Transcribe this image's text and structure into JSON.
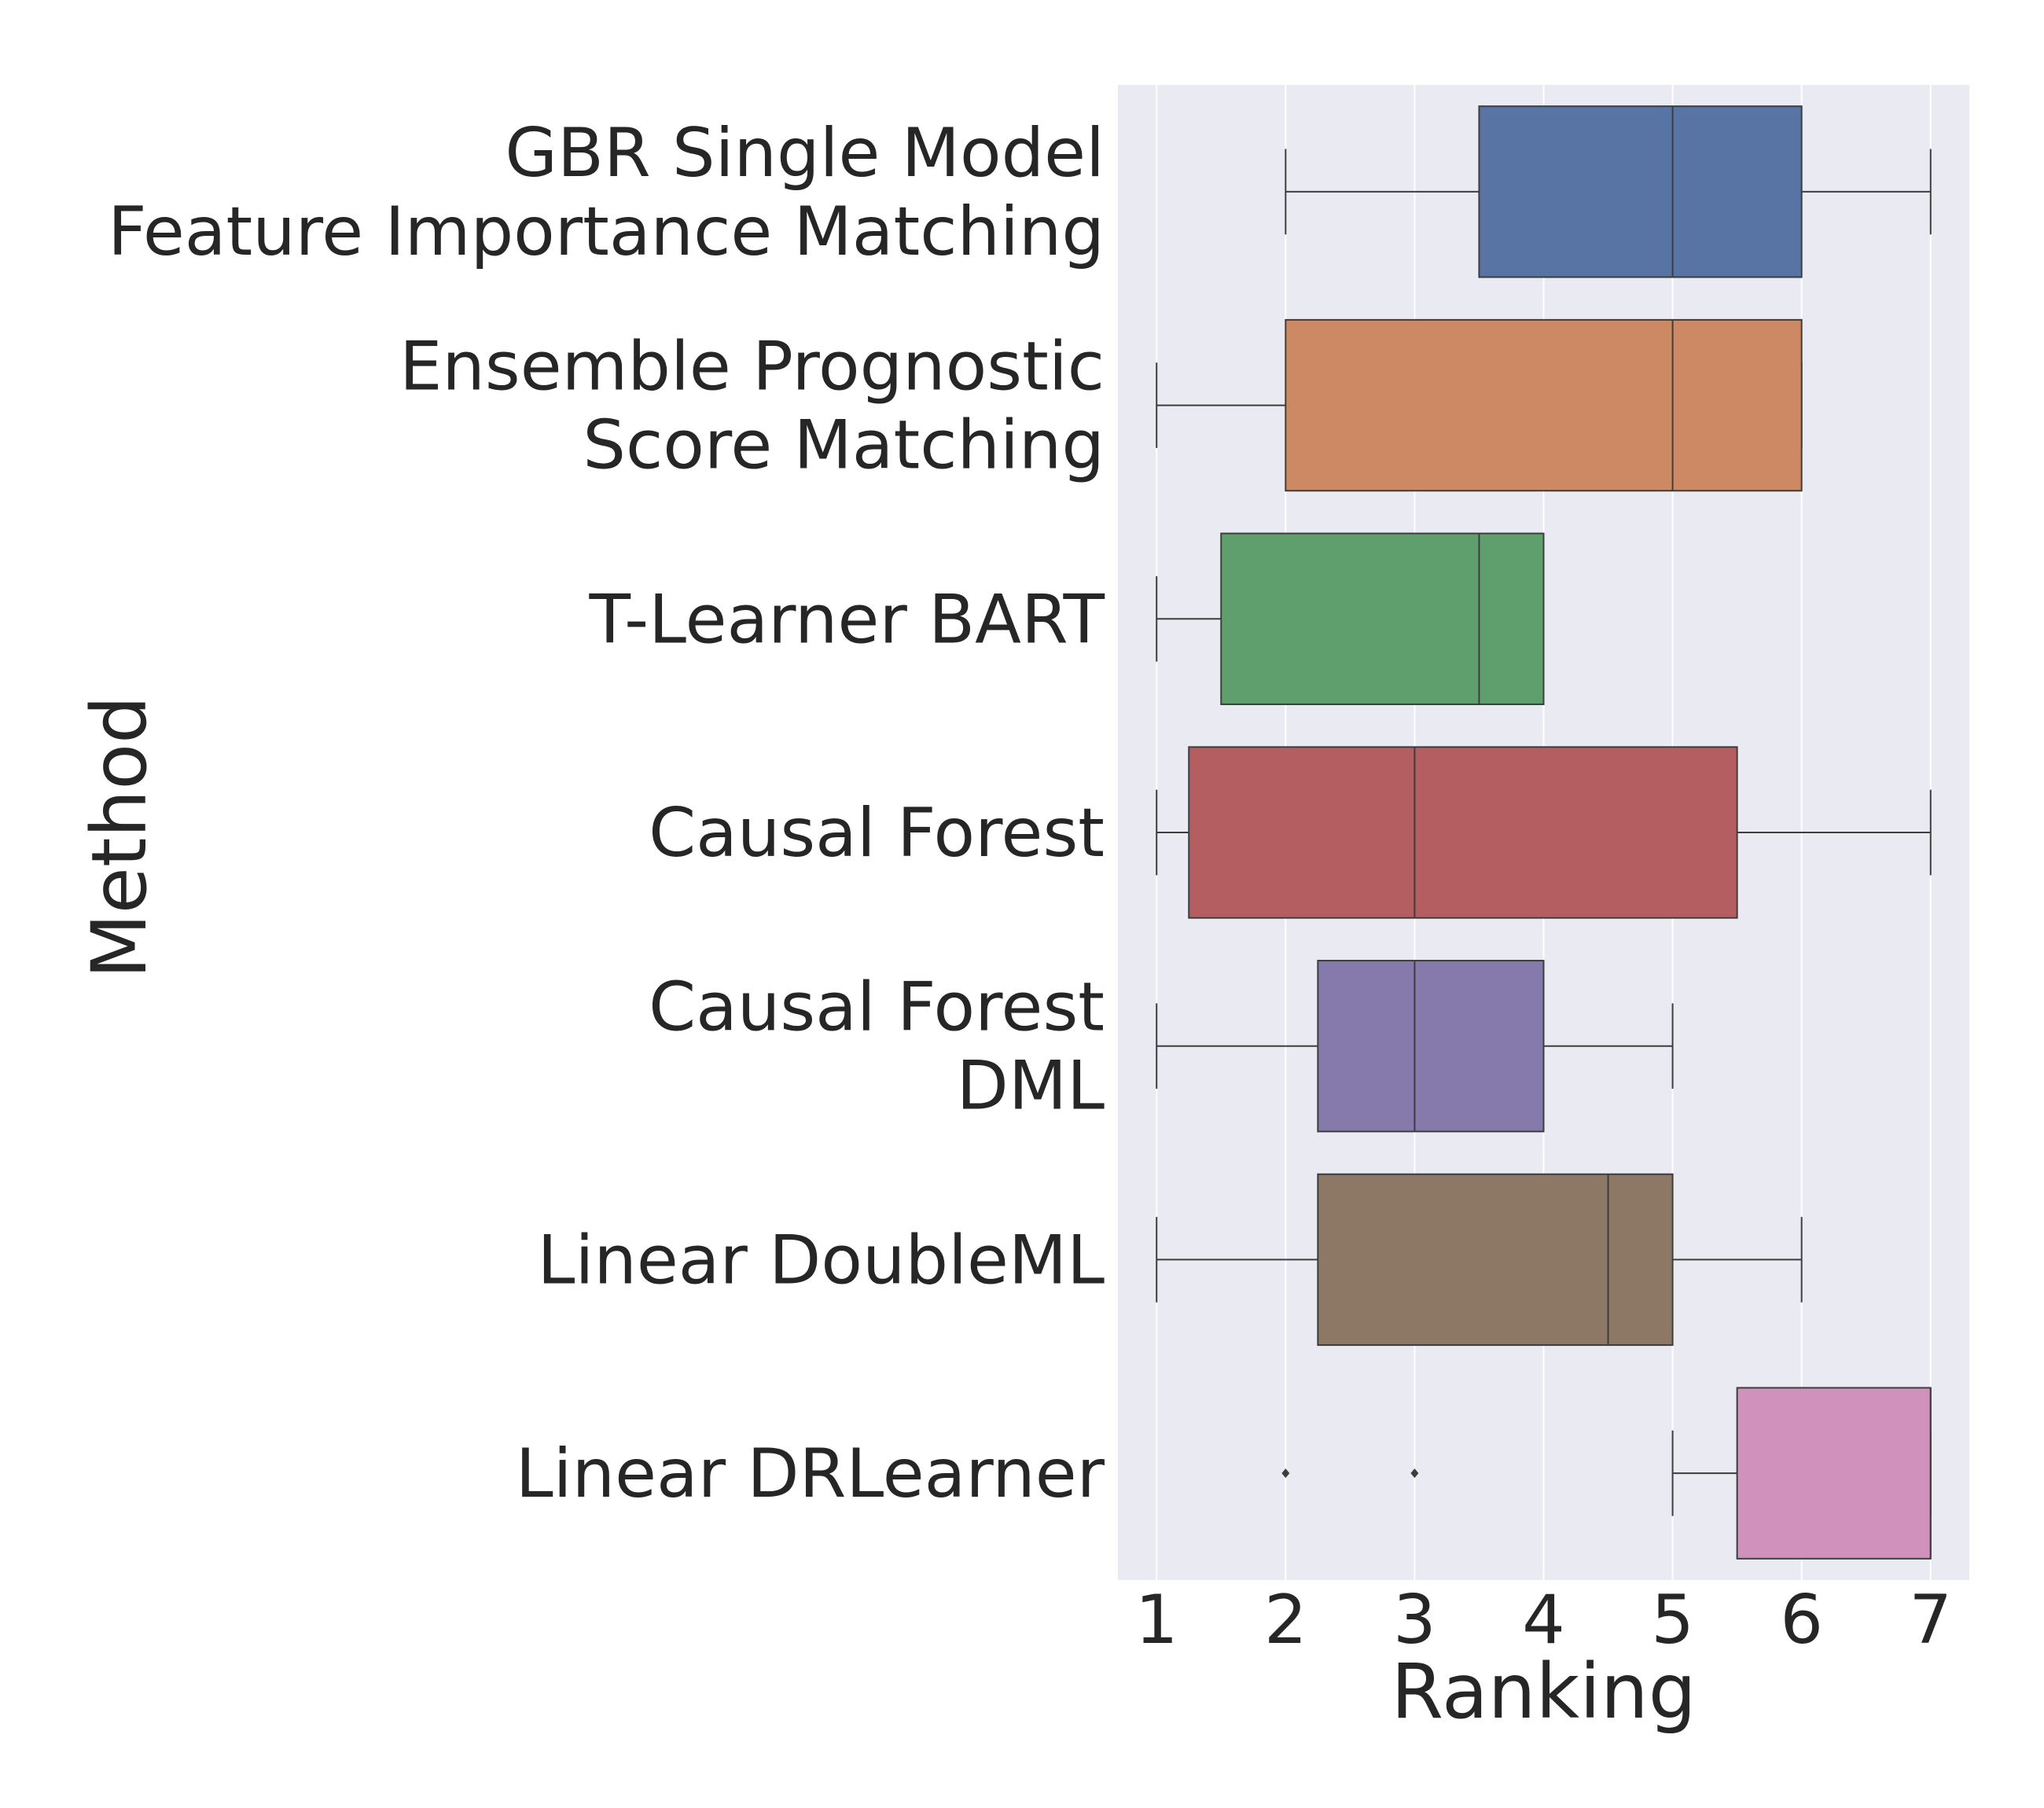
{
  "chart_data": {
    "type": "box",
    "orientation": "horizontal",
    "xlabel": "Ranking",
    "ylabel": "Method",
    "xlim": [
      0.7,
      7.3
    ],
    "xticks": [
      "1",
      "2",
      "3",
      "4",
      "5",
      "6",
      "7"
    ],
    "grid": true,
    "legend": "none",
    "background_color": "#eaeaf2",
    "categories": [
      {
        "label_lines": [
          "GBR Single Model",
          "Feature Importance Matching"
        ],
        "color": "#5874a4",
        "whisker_low": 2,
        "q1": 3.5,
        "median": 5,
        "q3": 6,
        "whisker_high": 7,
        "outliers": []
      },
      {
        "label_lines": [
          "Ensemble Prognostic",
          "Score Matching"
        ],
        "color": "#cc8963",
        "whisker_low": 1,
        "q1": 2,
        "median": 5,
        "q3": 6,
        "whisker_high": 6,
        "outliers": []
      },
      {
        "label_lines": [
          "T-Learner BART"
        ],
        "color": "#5f9f6e",
        "whisker_low": 1,
        "q1": 1.5,
        "median": 3.5,
        "q3": 4,
        "whisker_high": 4,
        "outliers": []
      },
      {
        "label_lines": [
          "Causal Forest"
        ],
        "color": "#b55e61",
        "whisker_low": 1,
        "q1": 1.25,
        "median": 3,
        "q3": 5.5,
        "whisker_high": 7,
        "outliers": []
      },
      {
        "label_lines": [
          "Causal Forest",
          "DML"
        ],
        "color": "#857aab",
        "whisker_low": 1,
        "q1": 2.25,
        "median": 3,
        "q3": 4,
        "whisker_high": 5,
        "outliers": []
      },
      {
        "label_lines": [
          "Linear DoubleML"
        ],
        "color": "#8d7865",
        "whisker_low": 1,
        "q1": 2.25,
        "median": 4.5,
        "q3": 5,
        "whisker_high": 6,
        "outliers": []
      },
      {
        "label_lines": [
          "Linear DRLearner"
        ],
        "color": "#d092bd",
        "whisker_low": 5,
        "q1": 5.5,
        "median": 7,
        "q3": 7,
        "whisker_high": 7,
        "outliers": [
          2,
          3
        ]
      }
    ]
  }
}
